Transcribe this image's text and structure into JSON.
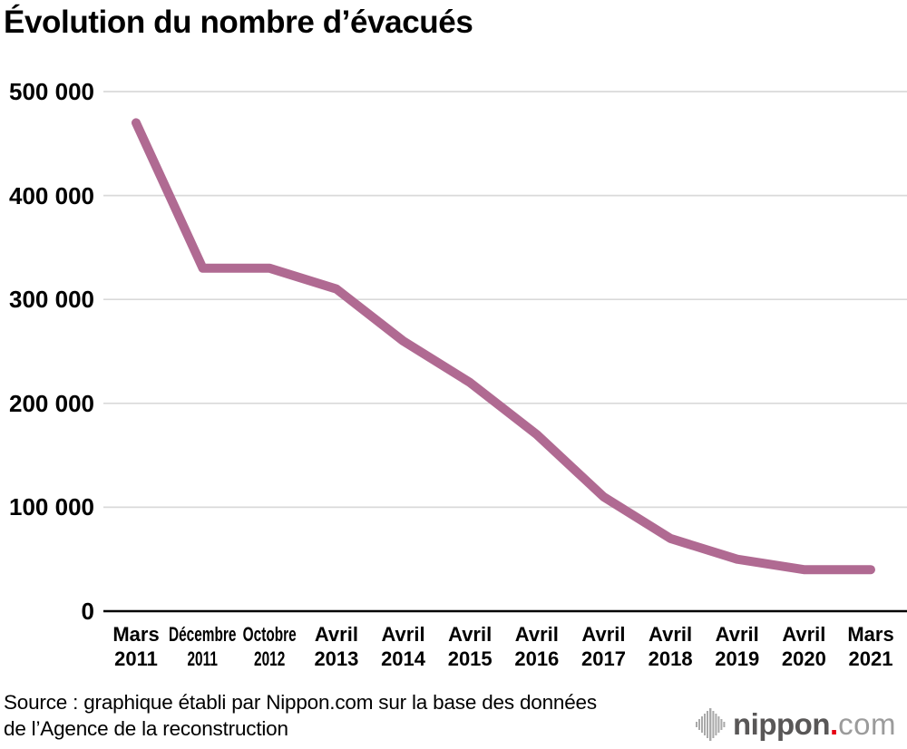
{
  "title": "Évolution du nombre d’évacués",
  "source": {
    "lines": [
      "Source : graphique établi par Nippon.com sur la base des données",
      "de l’Agence de la reconstruction"
    ]
  },
  "logo": {
    "icon": "soundwave-bars-icon",
    "name": "nippon",
    "dot": ".",
    "tld": "com"
  },
  "colors": {
    "line": "#b06a92",
    "grid": "#d9d9d9",
    "axis": "#000000",
    "text": "#000000",
    "logo_dark": "#595757",
    "logo_red": "#e60012",
    "logo_light": "#9b9b9b",
    "logo_bars": "#a9a9a9"
  },
  "chart_data": {
    "type": "line",
    "title": "Évolution du nombre d’évacués",
    "categories": [
      "Mars 2011",
      "Décembre 2011",
      "Octobre 2012",
      "Avril 2013",
      "Avril 2014",
      "Avril 2015",
      "Avril 2016",
      "Avril 2017",
      "Avril 2018",
      "Avril 2019",
      "Avril 2020",
      "Mars 2021"
    ],
    "tick_labels": [
      [
        "Mars",
        "2011"
      ],
      [
        "Décembre",
        "2011"
      ],
      [
        "Octobre",
        "2012"
      ],
      [
        "Avril",
        "2013"
      ],
      [
        "Avril",
        "2014"
      ],
      [
        "Avril",
        "2015"
      ],
      [
        "Avril",
        "2016"
      ],
      [
        "Avril",
        "2017"
      ],
      [
        "Avril",
        "2018"
      ],
      [
        "Avril",
        "2019"
      ],
      [
        "Avril",
        "2020"
      ],
      [
        "Mars",
        "2021"
      ]
    ],
    "values": [
      470000,
      330000,
      330000,
      310000,
      260000,
      220000,
      170000,
      110000,
      70000,
      50000,
      40000,
      40000
    ],
    "ylabel": "",
    "xlabel": "",
    "ylim": [
      0,
      500000
    ],
    "y_ticks": {
      "values": [
        500000,
        400000,
        300000,
        200000,
        100000,
        0
      ],
      "labels": [
        "500 000",
        "400 000",
        "300 000",
        "200 000",
        "100 000",
        "0"
      ]
    },
    "grid": "horizontal",
    "legend": "none",
    "line_width": 10
  }
}
